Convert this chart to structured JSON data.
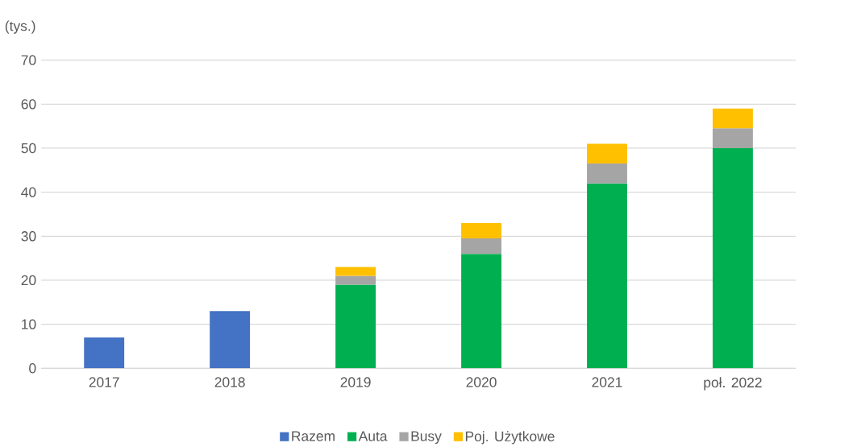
{
  "chart_data": {
    "type": "bar",
    "stacked": true,
    "ylabel": "(tys.)",
    "categories": [
      "2017",
      "2018",
      "2019",
      "2020",
      "2021",
      "poł. 2022"
    ],
    "series": [
      {
        "name": "Razem",
        "color": "#4472c4",
        "values": [
          7,
          13,
          null,
          null,
          null,
          null
        ]
      },
      {
        "name": "Auta",
        "color": "#00b050",
        "values": [
          null,
          null,
          19,
          26,
          42,
          50
        ]
      },
      {
        "name": "Busy",
        "color": "#a5a5a5",
        "values": [
          null,
          null,
          2,
          3.5,
          4.5,
          4.5
        ]
      },
      {
        "name": "Poj. Użytkowe",
        "color": "#ffc000",
        "values": [
          null,
          null,
          2,
          3.5,
          4.5,
          4.5
        ]
      }
    ],
    "ylim": [
      0,
      70
    ],
    "yticks": [
      0,
      10,
      20,
      30,
      40,
      50,
      60,
      70
    ],
    "grid": "y",
    "legend": "bottom"
  }
}
